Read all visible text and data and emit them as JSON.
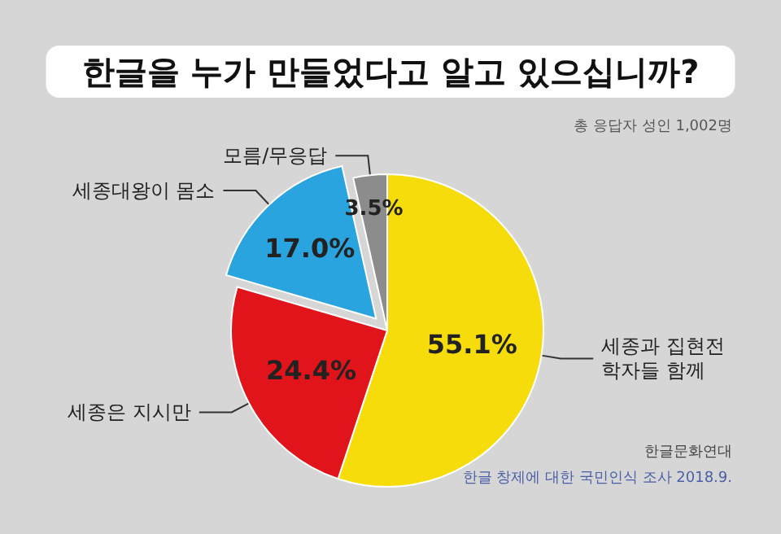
{
  "chart_data": {
    "type": "pie",
    "title": "한글을 누가 만들었다고 알고 있으십니까?",
    "categories": [
      "세종과 집현전 학자들 함께",
      "세종은 지시만",
      "세종대왕이 몸소",
      "모름/무응답"
    ],
    "values": [
      55.1,
      24.4,
      17.0,
      3.5
    ],
    "colors": [
      "#f7dc0c",
      "#e0141a",
      "#2aa4df",
      "#8c8c8c"
    ],
    "value_labels": [
      "55.1%",
      "24.4%",
      "17.0%",
      "3.5%"
    ],
    "annotations": [
      "총 응답자 성인 1,002명",
      "한글문화연대",
      "한글 창제에 대한 국민인식 조사 2018.9."
    ]
  }
}
